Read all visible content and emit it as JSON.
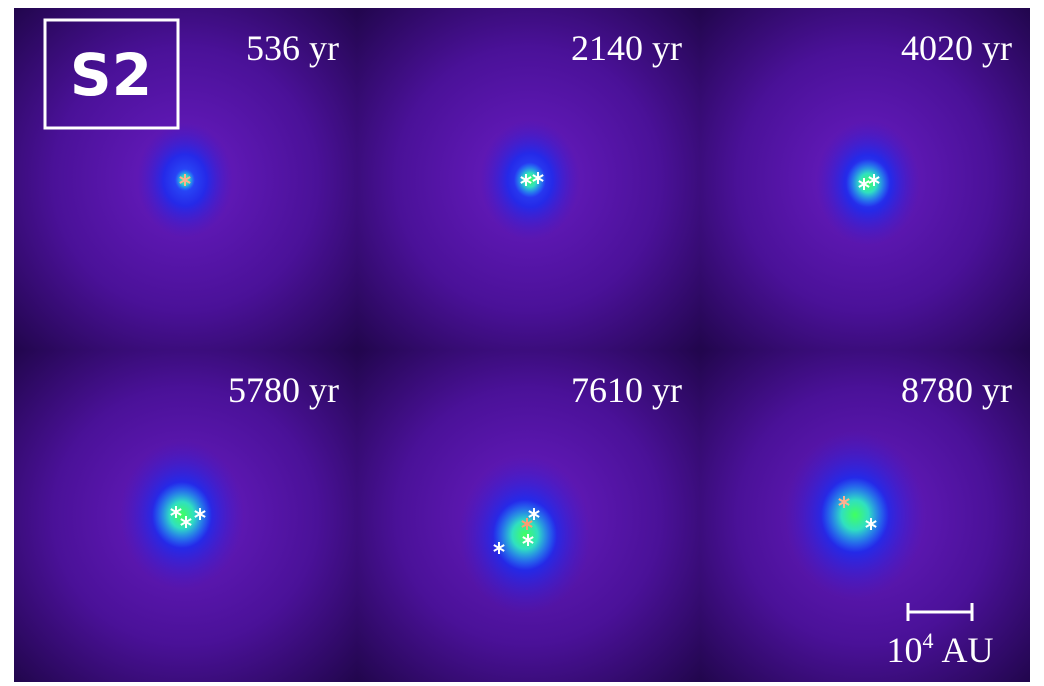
{
  "figure": {
    "tag": "S2",
    "panels": [
      {
        "time": "536 yr"
      },
      {
        "time": "2140 yr"
      },
      {
        "time": "4020 yr"
      },
      {
        "time": "5780 yr"
      },
      {
        "time": "7610 yr"
      },
      {
        "time": "8780 yr"
      }
    ],
    "scale_bar": {
      "base": "10",
      "exponent": "4",
      "unit": "AU"
    }
  }
}
